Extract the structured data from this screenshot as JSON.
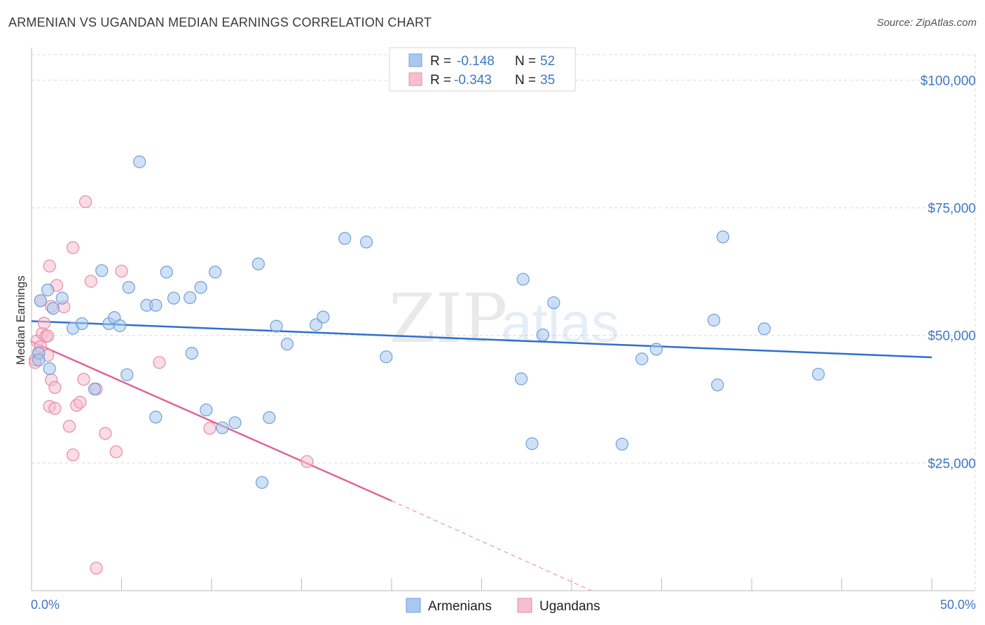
{
  "header": {
    "title": "ARMENIAN VS UGANDAN MEDIAN EARNINGS CORRELATION CHART",
    "source": "Source: ZipAtlas.com"
  },
  "watermark": {
    "zip": "ZIP",
    "atlas": "atlas"
  },
  "colors": {
    "armenian_fill": "#aac8ee",
    "armenian_stroke": "#6d9fd9",
    "armenian_line": "#2f6fcc",
    "ugandan_fill": "#f6bfd0",
    "ugandan_stroke": "#e88aa8",
    "ugandan_line": "#e06594",
    "axis_text": "#3d78c6",
    "grid": "#d9d9d9"
  },
  "legend": {
    "rows": [
      {
        "r_label": "R =",
        "r_value": "-0.148",
        "n_label": "N =",
        "n_value": "52"
      },
      {
        "r_label": "R =",
        "r_value": "-0.343",
        "n_label": "N =",
        "n_value": "35"
      }
    ]
  },
  "chart_data": {
    "type": "scatter",
    "title": "ARMENIAN VS UGANDAN MEDIAN EARNINGS CORRELATION CHART",
    "xlabel": "",
    "ylabel": "Median Earnings",
    "xlim": [
      0,
      50
    ],
    "ylim": [
      0,
      105000
    ],
    "x_tick_labels": [
      "0.0%",
      "50.0%"
    ],
    "y_ticks": [
      25000,
      50000,
      75000,
      100000
    ],
    "y_tick_labels": [
      "$25,000",
      "$50,000",
      "$75,000",
      "$100,000"
    ],
    "grid": true,
    "legend_position": "bottom-center",
    "series": [
      {
        "name": "Armenians",
        "r": -0.148,
        "n": 52,
        "trend": {
          "x0": 0,
          "y0": 52800,
          "x1": 50,
          "y1": 45700
        },
        "points": [
          [
            0.4,
            46500
          ],
          [
            0.4,
            45200
          ],
          [
            0.5,
            56800
          ],
          [
            0.9,
            58900
          ],
          [
            1.0,
            43500
          ],
          [
            1.2,
            55300
          ],
          [
            1.7,
            57300
          ],
          [
            2.3,
            51400
          ],
          [
            2.8,
            52300
          ],
          [
            3.5,
            39500
          ],
          [
            3.9,
            62700
          ],
          [
            4.3,
            52300
          ],
          [
            4.6,
            53500
          ],
          [
            4.9,
            51900
          ],
          [
            5.3,
            42300
          ],
          [
            5.4,
            59400
          ],
          [
            6.0,
            84000
          ],
          [
            6.4,
            55900
          ],
          [
            6.9,
            55900
          ],
          [
            6.9,
            34000
          ],
          [
            7.5,
            62400
          ],
          [
            7.9,
            57300
          ],
          [
            8.8,
            57400
          ],
          [
            8.9,
            46500
          ],
          [
            9.4,
            59400
          ],
          [
            9.7,
            35400
          ],
          [
            10.2,
            62400
          ],
          [
            10.6,
            31900
          ],
          [
            11.3,
            32900
          ],
          [
            12.6,
            64000
          ],
          [
            12.8,
            21200
          ],
          [
            13.2,
            33900
          ],
          [
            13.6,
            51800
          ],
          [
            14.2,
            48300
          ],
          [
            15.8,
            52100
          ],
          [
            16.2,
            53600
          ],
          [
            17.4,
            69000
          ],
          [
            18.6,
            68300
          ],
          [
            19.7,
            45800
          ],
          [
            27.2,
            41500
          ],
          [
            27.3,
            61000
          ],
          [
            27.8,
            28800
          ],
          [
            28.4,
            50100
          ],
          [
            29.0,
            56400
          ],
          [
            32.8,
            28700
          ],
          [
            33.9,
            45400
          ],
          [
            34.7,
            47300
          ],
          [
            37.9,
            53000
          ],
          [
            38.1,
            40300
          ],
          [
            38.4,
            69300
          ],
          [
            40.7,
            51300
          ],
          [
            43.7,
            42400
          ]
        ]
      },
      {
        "name": "Ugandans",
        "r": -0.343,
        "n": 35,
        "trend": {
          "x0": 0,
          "y0": 48800,
          "x1": 20,
          "y1": 17600
        },
        "trend_dashed_to": {
          "x": 50,
          "y": -30000
        },
        "points": [
          [
            0.2,
            45200
          ],
          [
            0.2,
            44700
          ],
          [
            0.3,
            48900
          ],
          [
            0.4,
            46700
          ],
          [
            0.5,
            47800
          ],
          [
            0.5,
            56800
          ],
          [
            0.6,
            50400
          ],
          [
            0.7,
            52400
          ],
          [
            0.8,
            49800
          ],
          [
            0.9,
            46100
          ],
          [
            0.9,
            49900
          ],
          [
            1.0,
            36100
          ],
          [
            1.0,
            63600
          ],
          [
            1.1,
            41300
          ],
          [
            1.1,
            55700
          ],
          [
            1.3,
            39800
          ],
          [
            1.3,
            35700
          ],
          [
            1.4,
            59800
          ],
          [
            1.8,
            55600
          ],
          [
            2.1,
            32200
          ],
          [
            2.3,
            26600
          ],
          [
            2.3,
            67200
          ],
          [
            2.5,
            36300
          ],
          [
            2.7,
            36900
          ],
          [
            2.9,
            41400
          ],
          [
            3.0,
            76200
          ],
          [
            3.3,
            60600
          ],
          [
            3.6,
            39500
          ],
          [
            3.6,
            4400
          ],
          [
            4.1,
            30800
          ],
          [
            4.7,
            27200
          ],
          [
            5.0,
            62600
          ],
          [
            7.1,
            44700
          ],
          [
            9.9,
            31800
          ],
          [
            15.3,
            25300
          ]
        ]
      }
    ]
  }
}
